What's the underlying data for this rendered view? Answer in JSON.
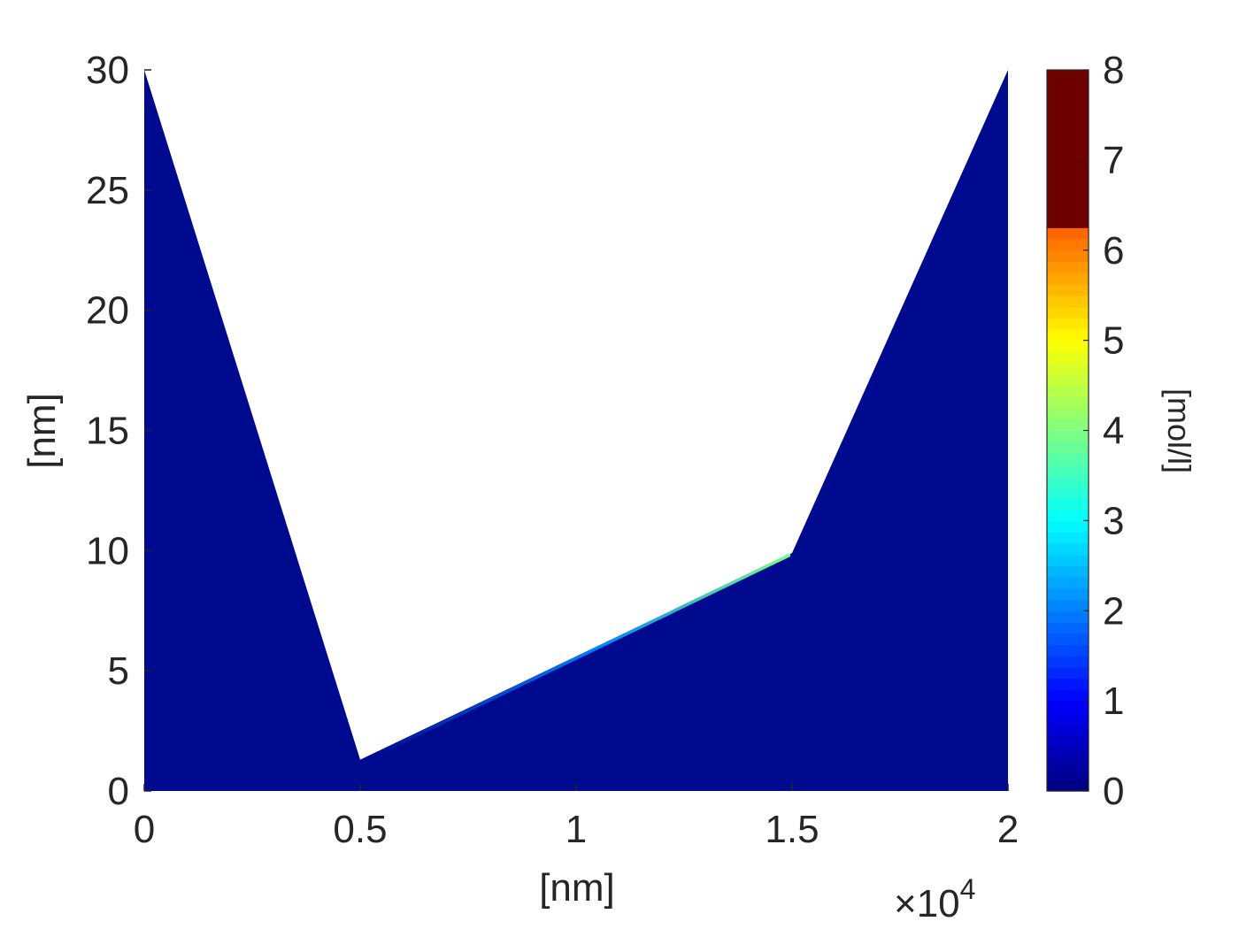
{
  "chart_data": {
    "type": "heatmap",
    "title": "",
    "xlabel": "[nm]",
    "ylabel": "[nm]",
    "xlim": [
      0,
      20000
    ],
    "ylim": [
      0,
      30
    ],
    "x_exponent_label": "×10",
    "x_exponent_power": "4",
    "x_ticks": [
      {
        "value": 0,
        "label": "0"
      },
      {
        "value": 5000,
        "label": "0.5"
      },
      {
        "value": 10000,
        "label": "1"
      },
      {
        "value": 15000,
        "label": "1.5"
      },
      {
        "value": 20000,
        "label": "2"
      }
    ],
    "y_ticks": [
      {
        "value": 0,
        "label": "0"
      },
      {
        "value": 5,
        "label": "5"
      },
      {
        "value": 10,
        "label": "10"
      },
      {
        "value": 15,
        "label": "15"
      },
      {
        "value": 20,
        "label": "20"
      },
      {
        "value": 25,
        "label": "25"
      },
      {
        "value": 30,
        "label": "30"
      }
    ],
    "domain_boundary": [
      {
        "x": 0,
        "y": 30
      },
      {
        "x": 5000,
        "y": 1.3
      },
      {
        "x": 15000,
        "y": 9.9
      },
      {
        "x": 20000,
        "y": 30
      }
    ],
    "domain_value": 0.1,
    "domain_color": "#000a8f",
    "surface_layer_max": 4,
    "colorbar": {
      "label": "[mol/l]",
      "range": [
        0,
        8
      ],
      "colormap": "jet",
      "saturated_above": 6.2,
      "saturated_color": "#6e0000",
      "ticks": [
        {
          "value": 0,
          "label": "0"
        },
        {
          "value": 1,
          "label": "1"
        },
        {
          "value": 2,
          "label": "2"
        },
        {
          "value": 3,
          "label": "3"
        },
        {
          "value": 4,
          "label": "4"
        },
        {
          "value": 5,
          "label": "5"
        },
        {
          "value": 6,
          "label": "6"
        },
        {
          "value": 7,
          "label": "7"
        },
        {
          "value": 8,
          "label": "8"
        }
      ]
    }
  }
}
